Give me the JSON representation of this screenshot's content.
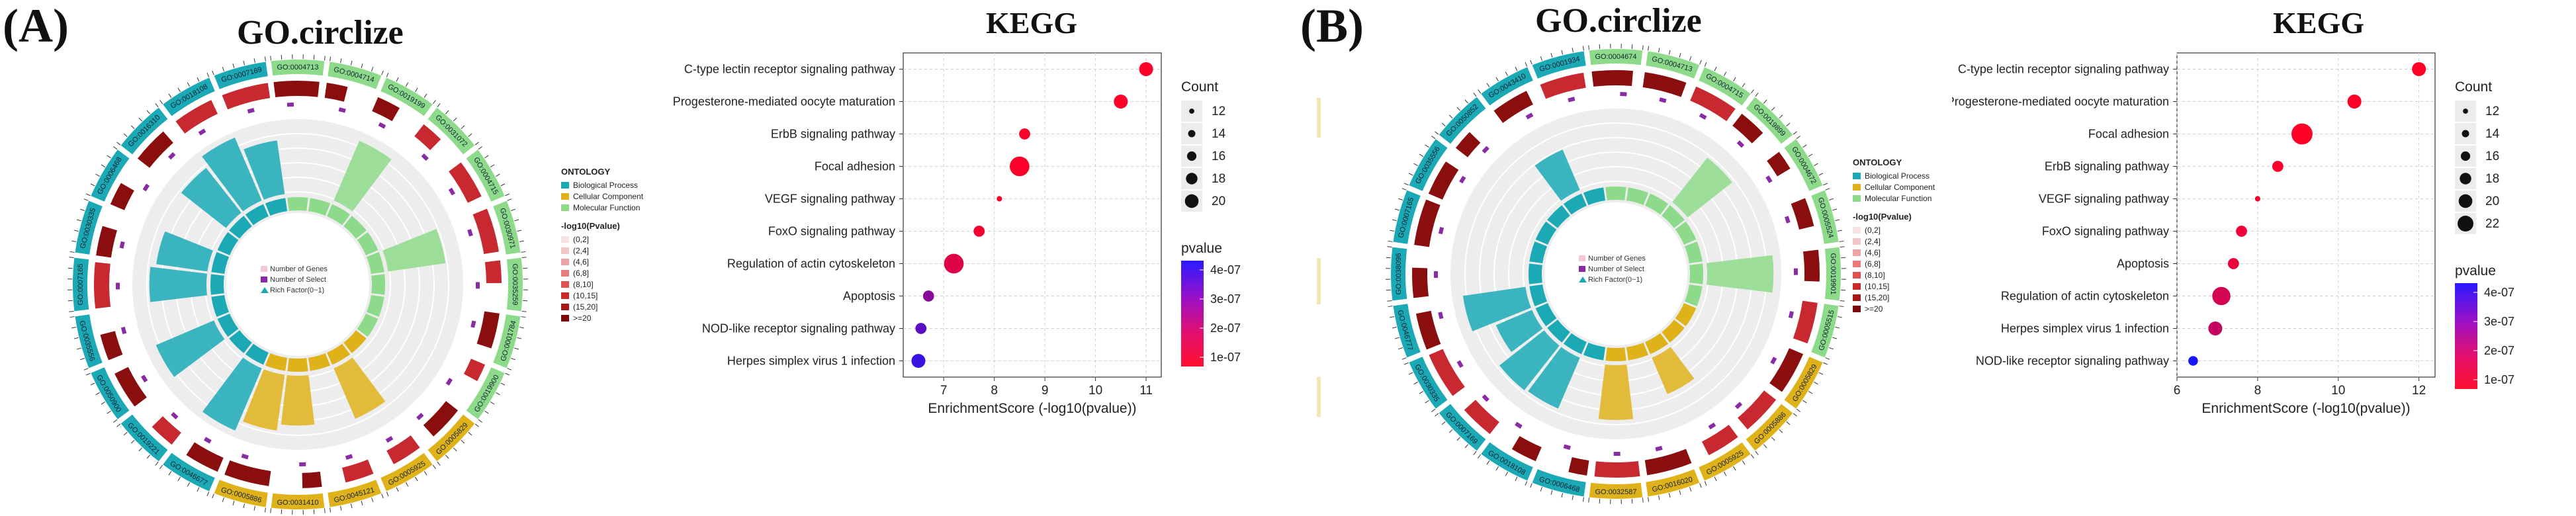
{
  "panels": [
    {
      "letter": "(A)",
      "circlize_title": "GO.circlize",
      "go_terms": [
        "GO:0004713",
        "GO:0004714",
        "GO:0019199",
        "GO:0031072",
        "GO:0004715",
        "GO:0030971",
        "GO:0035259",
        "GO:0001784",
        "GO:0019900",
        "GO:0005829",
        "GO:0005925",
        "GO:0045121",
        "GO:0031410",
        "GO:0005886",
        "GO:0046677",
        "GO:0019221",
        "GO:0050900",
        "GO:0035556",
        "GO:0007165",
        "GO:0030335",
        "GO:0006468",
        "GO:0016310",
        "GO:0018108",
        "GO:0007169"
      ],
      "go_categories": [
        "MF",
        "MF",
        "MF",
        "MF",
        "MF",
        "MF",
        "MF",
        "MF",
        "MF",
        "CC",
        "CC",
        "CC",
        "CC",
        "CC",
        "BP",
        "BP",
        "BP",
        "BP",
        "BP",
        "BP",
        "BP",
        "BP",
        "BP",
        "BP"
      ]
    },
    {
      "letter": "(B)",
      "circlize_title": "GO.circlize",
      "go_terms": [
        "GO:0004674",
        "GO:0004713",
        "GO:0004715",
        "GO:0019899",
        "GO:0004672",
        "GO:0005524",
        "GO:0019901",
        "GO:0005515",
        "GO:0005829",
        "GO:0005886",
        "GO:0005925",
        "GO:0016020",
        "GO:0032587",
        "GO:0006468",
        "GO:0018108",
        "GO:0007169",
        "GO:0030335",
        "GO:0046777",
        "GO:0038096",
        "GO:0007165",
        "GO:0035556",
        "GO:0050852",
        "GO:0043410",
        "GO:0001934"
      ],
      "go_categories": [
        "MF",
        "MF",
        "MF",
        "MF",
        "MF",
        "MF",
        "MF",
        "MF",
        "CC",
        "CC",
        "CC",
        "CC",
        "CC",
        "BP",
        "BP",
        "BP",
        "BP",
        "BP",
        "BP",
        "BP",
        "BP",
        "BP",
        "BP",
        "BP"
      ]
    }
  ],
  "go_legend": {
    "ontology_title": "ONTOLOGY",
    "ontology_items": [
      "Biological Process",
      "Cellular Component",
      "Molecular Function"
    ],
    "pvalue_title": "-log10(Pvalue)",
    "pvalue_bins": [
      "(0,2]",
      "(2,4]",
      "(4,6]",
      "(6,8]",
      "(8,10]",
      "(10,15]",
      "(15,20]",
      ">=20"
    ],
    "inner_items": [
      "Number of Genes",
      "Number of Select",
      "Rich Factor(0~1)"
    ]
  },
  "colors": {
    "bp": "#1aa9b5",
    "cc": "#e0b21a",
    "mf": "#8ddb8a",
    "dark_red": "#8b0e0e",
    "bar_red": "#c8282f",
    "purple_text": "#8a2ba6",
    "select_bar": "#e8a6b8",
    "accent_box": "#f2e6b8"
  },
  "chart_data": [
    {
      "type": "scatter",
      "title": "KEGG",
      "xlabel": "EnrichmentScore (-log10(pvalue))",
      "ylabel": "",
      "categories": [
        "C-type lectin receptor signaling pathway",
        "Progesterone-mediated oocyte maturation",
        "ErbB signaling pathway",
        "Focal adhesion",
        "VEGF signaling pathway",
        "FoxO signaling pathway",
        "Regulation of actin cytoskeleton",
        "Apoptosis",
        "NOD-like receptor signaling pathway",
        "Herpes simplex virus 1 infection"
      ],
      "x": [
        11.0,
        10.5,
        8.6,
        8.5,
        8.1,
        7.7,
        7.2,
        6.7,
        6.55,
        6.5
      ],
      "count": [
        17,
        17,
        15,
        21,
        11,
        15,
        21,
        15,
        15,
        17
      ],
      "pvalue": [
        1e-11,
        3e-11,
        2.5e-09,
        3e-09,
        8e-09,
        2e-08,
        6e-08,
        2.2e-07,
        3e-07,
        3.6e-07
      ],
      "xlim": [
        6.2,
        11.3
      ],
      "xticks": [
        "7",
        "8",
        "9",
        "10",
        "11"
      ],
      "size_legend": {
        "title": "Count",
        "values": [
          "12",
          "14",
          "16",
          "18",
          "20"
        ]
      },
      "color_legend": {
        "title": "pvalue",
        "labels": [
          "4e-07",
          "3e-07",
          "2e-07",
          "1e-07"
        ],
        "low": "#ff0000",
        "high": "#0000ff"
      },
      "grid": true
    },
    {
      "type": "scatter",
      "title": "KEGG",
      "xlabel": "EnrichmentScore (-log10(pvalue))",
      "ylabel": "",
      "categories": [
        "C-type lectin receptor signaling pathway",
        "Progesterone-mediated oocyte maturation",
        "Focal adhesion",
        "ErbB signaling pathway",
        "VEGF signaling pathway",
        "FoxO signaling pathway",
        "Apoptosis",
        "Regulation of actin cytoskeleton",
        "Herpes simplex virus 1 infection",
        "NOD-like receptor signaling pathway"
      ],
      "x": [
        12.0,
        10.4,
        9.1,
        8.5,
        8.0,
        7.6,
        7.4,
        7.1,
        6.95,
        6.4
      ],
      "count": [
        17,
        17,
        22,
        15,
        11,
        15,
        15,
        20,
        17,
        14
      ],
      "pvalue": [
        1e-12,
        4e-11,
        8e-10,
        3e-09,
        1e-08,
        2.5e-08,
        4e-08,
        8e-08,
        1.1e-07,
        4.2e-07
      ],
      "xlim": [
        6.0,
        12.4
      ],
      "xticks": [
        "6",
        "8",
        "10",
        "12"
      ],
      "size_legend": {
        "title": "Count",
        "values": [
          "12",
          "14",
          "16",
          "18",
          "20",
          "22"
        ]
      },
      "color_legend": {
        "title": "pvalue",
        "labels": [
          "4e-07",
          "3e-07",
          "2e-07",
          "1e-07"
        ],
        "low": "#ff0000",
        "high": "#0000ff"
      },
      "grid": true
    }
  ]
}
